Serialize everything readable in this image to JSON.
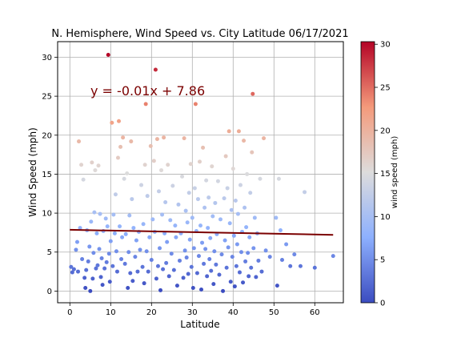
{
  "chart_data": {
    "type": "scatter",
    "title": "N. Hemisphere, Wind Speed vs. City Latitude  06/17/2021",
    "xlabel": "Latitude",
    "ylabel": "Wind Speed (mph)",
    "xlim": [
      -3,
      67
    ],
    "ylim": [
      -1.5,
      32
    ],
    "xticks": [
      0,
      10,
      20,
      30,
      40,
      50,
      60
    ],
    "yticks": [
      0,
      5,
      10,
      15,
      20,
      25,
      30
    ],
    "grid": true,
    "colormap": "coolwarm",
    "colorbar": {
      "label": "wind speed (mph)",
      "range": [
        0,
        30.3
      ],
      "ticks": [
        0,
        5,
        10,
        15,
        20,
        25,
        30
      ]
    },
    "regression": {
      "equation": "y = -0.01x + 7.86",
      "slope": -0.01,
      "intercept": 7.86,
      "x_range": [
        0,
        64.5
      ],
      "color": "#7b0000"
    },
    "points": [
      [
        0.3,
        3.1
      ],
      [
        0.6,
        2.4
      ],
      [
        1,
        2.8
      ],
      [
        1.5,
        5.3
      ],
      [
        1.8,
        6.3
      ],
      [
        2,
        2.5
      ],
      [
        2.2,
        19.2
      ],
      [
        2.5,
        8.1
      ],
      [
        2.8,
        16.2
      ],
      [
        3,
        4.1
      ],
      [
        3.3,
        14.3
      ],
      [
        3.6,
        1.7
      ],
      [
        3.8,
        0.4
      ],
      [
        4,
        2.7
      ],
      [
        4.2,
        7.8
      ],
      [
        4.5,
        3.8
      ],
      [
        4.8,
        5.7
      ],
      [
        5,
        0
      ],
      [
        5.2,
        8.9
      ],
      [
        5.4,
        16.5
      ],
      [
        5.6,
        1.6
      ],
      [
        5.8,
        4.9
      ],
      [
        6,
        10.1
      ],
      [
        6.2,
        15.5
      ],
      [
        6.4,
        2.9
      ],
      [
        6.6,
        7.4
      ],
      [
        6.8,
        3.3
      ],
      [
        7,
        16.1
      ],
      [
        7.2,
        5.4
      ],
      [
        7.4,
        9.9
      ],
      [
        7.6,
        1.8
      ],
      [
        7.8,
        4.2
      ],
      [
        8,
        0.8
      ],
      [
        8.2,
        7.7
      ],
      [
        8.5,
        2.9
      ],
      [
        8.8,
        9.3
      ],
      [
        9,
        3.7
      ],
      [
        9.2,
        8.3
      ],
      [
        9.4,
        30.3
      ],
      [
        9.6,
        4.8
      ],
      [
        9.8,
        1.2
      ],
      [
        10,
        6.4
      ],
      [
        10.3,
        21.6
      ],
      [
        10.5,
        3.2
      ],
      [
        10.7,
        9.8
      ],
      [
        11,
        7.4
      ],
      [
        11.2,
        12.4
      ],
      [
        11.4,
        5.1
      ],
      [
        11.6,
        2.5
      ],
      [
        11.8,
        17.1
      ],
      [
        12,
        21.8
      ],
      [
        12.2,
        8.3
      ],
      [
        12.4,
        18.5
      ],
      [
        12.6,
        4.1
      ],
      [
        12.8,
        6.9
      ],
      [
        13,
        19.7
      ],
      [
        13.3,
        14.4
      ],
      [
        13.5,
        3.5
      ],
      [
        13.7,
        7.3
      ],
      [
        14,
        15.1
      ],
      [
        14.2,
        0.4
      ],
      [
        14.4,
        5
      ],
      [
        14.6,
        9.7
      ],
      [
        14.8,
        2.3
      ],
      [
        15,
        19.2
      ],
      [
        15.2,
        11.8
      ],
      [
        15.4,
        1.3
      ],
      [
        15.6,
        8.1
      ],
      [
        16,
        4.4
      ],
      [
        16.3,
        6.5
      ],
      [
        16.6,
        2.5
      ],
      [
        16.9,
        7.6
      ],
      [
        17.2,
        5.3
      ],
      [
        17.5,
        13.6
      ],
      [
        17.8,
        3.1
      ],
      [
        18,
        8.6
      ],
      [
        18.2,
        1
      ],
      [
        18.4,
        16.2
      ],
      [
        18.6,
        24
      ],
      [
        18.8,
        5.1
      ],
      [
        19,
        12.2
      ],
      [
        19.2,
        2.5
      ],
      [
        19.5,
        6.9
      ],
      [
        19.8,
        18.6
      ],
      [
        20,
        4
      ],
      [
        20.3,
        9.2
      ],
      [
        20.6,
        16.7
      ],
      [
        20.8,
        7.6
      ],
      [
        21,
        28.4
      ],
      [
        21.2,
        1.6
      ],
      [
        21.4,
        19.5
      ],
      [
        21.6,
        3.2
      ],
      [
        21.8,
        12.8
      ],
      [
        22,
        5.5
      ],
      [
        22.2,
        0.1
      ],
      [
        22.4,
        15.5
      ],
      [
        22.6,
        9.8
      ],
      [
        22.8,
        2.8
      ],
      [
        23,
        19.7
      ],
      [
        23.2,
        7.4
      ],
      [
        23.4,
        11.4
      ],
      [
        23.6,
        3.6
      ],
      [
        23.8,
        6.3
      ],
      [
        24,
        16.2
      ],
      [
        24.3,
        1.9
      ],
      [
        24.6,
        9.1
      ],
      [
        24.9,
        4.8
      ],
      [
        25.2,
        13.5
      ],
      [
        25.5,
        2.7
      ],
      [
        25.8,
        8.4
      ],
      [
        26,
        6.9
      ],
      [
        26.3,
        0.7
      ],
      [
        26.6,
        11.1
      ],
      [
        26.9,
        3.9
      ],
      [
        27.2,
        7.4
      ],
      [
        27.5,
        14.7
      ],
      [
        27.8,
        1.7
      ],
      [
        28,
        19.6
      ],
      [
        28.2,
        5.2
      ],
      [
        28.4,
        10.3
      ],
      [
        28.6,
        4.3
      ],
      [
        28.8,
        8.8
      ],
      [
        29,
        2.2
      ],
      [
        29.2,
        12.6
      ],
      [
        29.4,
        6.6
      ],
      [
        29.6,
        16.3
      ],
      [
        29.8,
        3.1
      ],
      [
        30,
        9.4
      ],
      [
        30.2,
        0.4
      ],
      [
        30.4,
        5.5
      ],
      [
        30.6,
        13.2
      ],
      [
        30.8,
        24
      ],
      [
        31,
        7.7
      ],
      [
        31.2,
        2.3
      ],
      [
        31.4,
        11.8
      ],
      [
        31.6,
        4.5
      ],
      [
        31.8,
        16.6
      ],
      [
        32,
        8.4
      ],
      [
        32.2,
        0.2
      ],
      [
        32.4,
        6.2
      ],
      [
        32.6,
        18.4
      ],
      [
        32.8,
        3.5
      ],
      [
        33,
        10.7
      ],
      [
        33.2,
        5.4
      ],
      [
        33.4,
        14.2
      ],
      [
        33.6,
        1.9
      ],
      [
        33.8,
        8.1
      ],
      [
        34,
        12
      ],
      [
        34.2,
        4.1
      ],
      [
        34.4,
        6.8
      ],
      [
        34.6,
        2.6
      ],
      [
        34.8,
        16
      ],
      [
        35,
        9.6
      ],
      [
        35.2,
        0.9
      ],
      [
        35.4,
        5.1
      ],
      [
        35.6,
        11.3
      ],
      [
        35.8,
        3.4
      ],
      [
        36,
        7.3
      ],
      [
        36.3,
        14.1
      ],
      [
        36.6,
        2.1
      ],
      [
        36.9,
        9.2
      ],
      [
        37.2,
        4.7
      ],
      [
        37.5,
        0
      ],
      [
        37.8,
        11.9
      ],
      [
        38,
        6.5
      ],
      [
        38.2,
        17.3
      ],
      [
        38.4,
        3
      ],
      [
        38.6,
        13.2
      ],
      [
        38.8,
        5.6
      ],
      [
        39,
        20.5
      ],
      [
        39.2,
        8.7
      ],
      [
        39.4,
        1.2
      ],
      [
        39.6,
        10.4
      ],
      [
        39.8,
        4.4
      ],
      [
        40,
        15.7
      ],
      [
        40.2,
        7.1
      ],
      [
        40.4,
        0.6
      ],
      [
        40.6,
        11.6
      ],
      [
        40.8,
        3.2
      ],
      [
        41,
        6
      ],
      [
        41.2,
        9.9
      ],
      [
        41.4,
        20.5
      ],
      [
        41.6,
        2.4
      ],
      [
        41.8,
        13.6
      ],
      [
        42,
        5
      ],
      [
        42.2,
        7.6
      ],
      [
        42.4,
        1.1
      ],
      [
        42.6,
        19.3
      ],
      [
        42.8,
        10.7
      ],
      [
        43,
        3.8
      ],
      [
        43.2,
        8.2
      ],
      [
        43.4,
        15
      ],
      [
        43.6,
        4.9
      ],
      [
        43.8,
        1.9
      ],
      [
        44,
        6.9
      ],
      [
        44.2,
        12.6
      ],
      [
        44.4,
        3
      ],
      [
        44.6,
        17.8
      ],
      [
        44.8,
        25.3
      ],
      [
        45,
        5.5
      ],
      [
        45.3,
        9.4
      ],
      [
        45.6,
        1.8
      ],
      [
        45.9,
        7.4
      ],
      [
        46.2,
        3.9
      ],
      [
        46.6,
        14.4
      ],
      [
        47,
        2.5
      ],
      [
        47.5,
        19.6
      ],
      [
        48,
        5.2
      ],
      [
        49,
        4.4
      ],
      [
        50.5,
        9.4
      ],
      [
        50.8,
        0.7
      ],
      [
        51.2,
        14.4
      ],
      [
        51.6,
        7.8
      ],
      [
        52,
        4
      ],
      [
        53,
        6
      ],
      [
        54,
        3.2
      ],
      [
        55,
        4.7
      ],
      [
        56.5,
        3.2
      ],
      [
        57.5,
        12.7
      ],
      [
        60,
        3
      ],
      [
        64.5,
        4.5
      ]
    ]
  }
}
